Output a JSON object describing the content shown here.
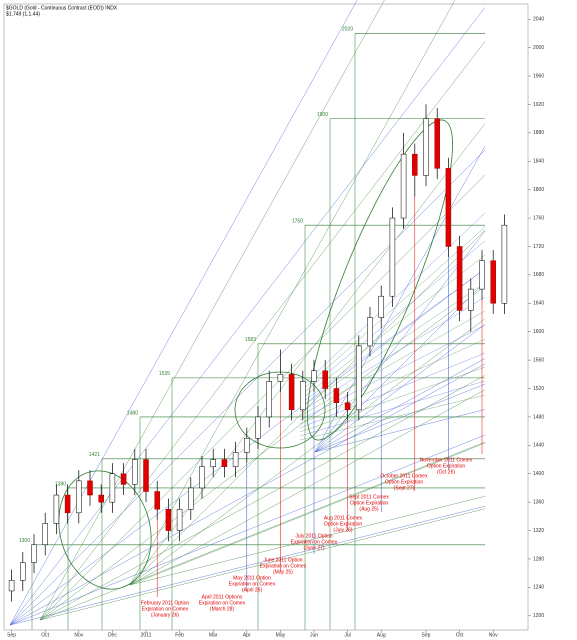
{
  "chart_data": {
    "type": "candlestick",
    "title": "$GOLD (Gold - Continuous Contract (EOD)) INDX",
    "subtitle": "$1,749 (1,1.44)",
    "categories": [
      "Sep",
      null,
      null,
      "Oct",
      null,
      null,
      "Nov",
      null,
      null,
      "Dec",
      null,
      null,
      "2011",
      null,
      null,
      "Feb",
      null,
      null,
      "Mar",
      null,
      null,
      "Apr",
      null,
      null,
      "May",
      null,
      null,
      "Jun",
      null,
      null,
      "Jul",
      null,
      null,
      "Aug",
      null,
      null,
      null,
      "Sep",
      null,
      null,
      "Oct",
      null,
      null,
      "Nov",
      null
    ],
    "open": [
      1235,
      1250,
      1275,
      1300,
      1330,
      1370,
      1345,
      1390,
      1370,
      1360,
      1400,
      1385,
      1420,
      1375,
      1350,
      1320,
      1350,
      1380,
      1410,
      1420,
      1410,
      1430,
      1450,
      1480,
      1530,
      1540,
      1490,
      1530,
      1545,
      1520,
      1500,
      1490,
      1580,
      1620,
      1650,
      1760,
      1850,
      1820,
      1900,
      1830,
      1720,
      1630,
      1660,
      1700,
      1640
    ],
    "high": [
      1265,
      1290,
      1315,
      1345,
      1385,
      1385,
      1405,
      1405,
      1385,
      1415,
      1415,
      1435,
      1435,
      1390,
      1365,
      1365,
      1395,
      1425,
      1435,
      1435,
      1445,
      1465,
      1495,
      1545,
      1575,
      1555,
      1545,
      1560,
      1560,
      1535,
      1515,
      1595,
      1635,
      1665,
      1775,
      1880,
      1865,
      1920,
      1915,
      1845,
      1735,
      1675,
      1715,
      1715,
      1765
    ],
    "low": [
      1220,
      1235,
      1260,
      1285,
      1315,
      1330,
      1330,
      1355,
      1345,
      1345,
      1370,
      1370,
      1360,
      1335,
      1305,
      1305,
      1335,
      1365,
      1395,
      1395,
      1395,
      1415,
      1435,
      1465,
      1515,
      1475,
      1475,
      1515,
      1505,
      1480,
      1475,
      1475,
      1565,
      1605,
      1635,
      1745,
      1790,
      1805,
      1815,
      1705,
      1615,
      1600,
      1645,
      1625,
      1625
    ],
    "close": [
      1250,
      1275,
      1300,
      1330,
      1370,
      1345,
      1390,
      1370,
      1360,
      1400,
      1385,
      1420,
      1375,
      1350,
      1320,
      1350,
      1380,
      1410,
      1420,
      1410,
      1430,
      1450,
      1480,
      1530,
      1540,
      1490,
      1530,
      1545,
      1520,
      1500,
      1490,
      1580,
      1620,
      1650,
      1760,
      1850,
      1820,
      1900,
      1830,
      1720,
      1630,
      1660,
      1700,
      1640,
      1750
    ],
    "up_color": "#ffffff",
    "down_color": "#e00000",
    "ylim": [
      1180,
      2060
    ],
    "yticks": [
      1200,
      1240,
      1280,
      1320,
      1360,
      1400,
      1440,
      1480,
      1520,
      1560,
      1600,
      1640,
      1680,
      1720,
      1760,
      1800,
      1840,
      1880,
      1920,
      1960,
      2000,
      2040
    ],
    "levels": [
      2020,
      1900,
      1750,
      1583,
      1535,
      1480,
      1421,
      1380,
      1300
    ],
    "level_color": "#2e7d32",
    "annotations": [
      [
        "February 2011 Option",
        "Expiration on Comex",
        "(January 26)"
      ],
      [
        "April 2011 Options",
        "Expiration on Comex",
        "(March 28)"
      ],
      [
        "May 2011 Option",
        "Expiration on Comex",
        "(April 26)"
      ],
      [
        "June 2011 Option",
        "Expiration on Comex",
        "(May 25)"
      ],
      [
        "July 2011 Option",
        "Expiration on Comex",
        "(June 27)"
      ],
      [
        "Aug 2011 Comex",
        "Option Expiration",
        "(July 26)"
      ],
      [
        "Sept 2011 Comex",
        "Option Expiration",
        "(Aug 25)"
      ],
      [
        "October 2011 Comex",
        "Option Expiration",
        "(Sept 27)"
      ],
      [
        "November 2011 Comex",
        "Option Expiration",
        "(Oct 26)"
      ]
    ]
  }
}
